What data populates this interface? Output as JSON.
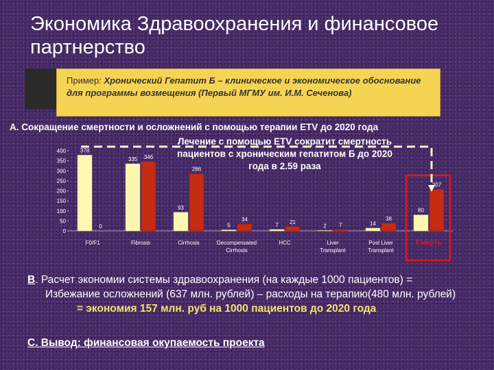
{
  "slide": {
    "title": "Экономика Здравоохранения и финансовое партнерство",
    "box": {
      "prefix": "Пример: ",
      "bold_text": "Хронический Гепатит Б – клиническое и экономическое обоснование для программы возмещения (Первый МГМУ им. И.М. Сеченова)"
    },
    "section_a": "А. Сокращение смертности и осложнений с помощью терапии ETV  до 2020  года",
    "callout": "Лечение с помощью ETV  сократит смертность пациентов  с хроническим гепатитом Б  до 2020 года в 2.59 раза",
    "section_b": {
      "letter": "В",
      "line1": ". Расчет экономии системы здравоохранения (на каждые 1000 пациентов) =",
      "line2": "Избежание осложнений (637 млн. рублей) – расходы на терапию(480 млн. рублей)",
      "result": "=  экономия 157 млн. руб на 1000 пациентов до 2020 года"
    },
    "section_c": {
      "prefix": "С. Вывод",
      "text": ":  финансовая окупаемость проекта"
    }
  },
  "colors": {
    "series_a": "#fff7b0",
    "series_b": "#c62b14",
    "highlight": "#e01818",
    "callout_line": "#fff6d0"
  },
  "chart_data": {
    "type": "bar",
    "categories": [
      "F0/F1",
      "Fibrosis",
      "Cirrhosis",
      "Decompensated Cirrhosis",
      "HCC",
      "Liver Transplant",
      "Post Liver Transplant",
      "Смерть"
    ],
    "series": [
      {
        "values": [
          378,
          335,
          93,
          5,
          7,
          2,
          14,
          80
        ]
      },
      {
        "values": [
          0,
          346,
          286,
          34,
          21,
          7,
          38,
          207
        ]
      }
    ],
    "ylim": [
      0,
      400
    ],
    "yticks": [
      0,
      50,
      100,
      150,
      200,
      250,
      300,
      350,
      400
    ],
    "highlight_category": "Смерть"
  }
}
